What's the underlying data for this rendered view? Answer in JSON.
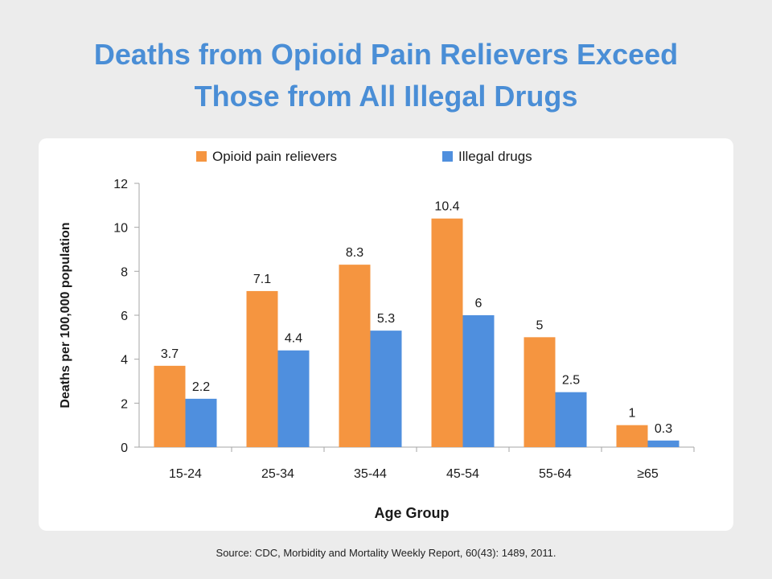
{
  "slide": {
    "title_line1": "Deaths from Opioid Pain Relievers Exceed",
    "title_line2": "Those from All Illegal Drugs",
    "source": "Source: CDC, Morbidity and Mortality Weekly Report, 60(43): 1489, 2011."
  },
  "chart_data": {
    "type": "bar",
    "title": "",
    "xlabel": "Age Group",
    "ylabel": "Deaths per 100,000 population",
    "categories": [
      "15-24",
      "25-34",
      "35-44",
      "45-54",
      "55-64",
      "≥65"
    ],
    "series": [
      {
        "name": "Opioid pain relievers",
        "color": "#f59540",
        "values": [
          3.7,
          7.1,
          8.3,
          10.4,
          5,
          1
        ],
        "labels": [
          "3.7",
          "7.1",
          "8.3",
          "10.4",
          "5",
          "1"
        ]
      },
      {
        "name": "Illegal drugs",
        "color": "#4f8fde",
        "values": [
          2.2,
          4.4,
          5.3,
          6,
          2.5,
          0.3
        ],
        "labels": [
          "2.2",
          "4.4",
          "5.3",
          "6",
          "2.5",
          "0.3"
        ]
      }
    ],
    "ylim": [
      0,
      12
    ],
    "yticks": [
      "0",
      "2",
      "4",
      "6",
      "8",
      "10",
      "12"
    ],
    "grid": false,
    "legend": "top"
  }
}
